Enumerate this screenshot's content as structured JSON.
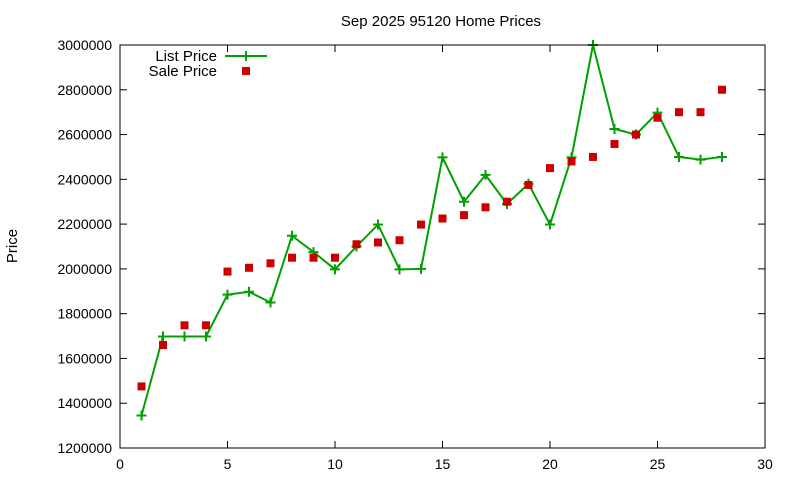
{
  "chart_data": {
    "type": "line",
    "title": "Sep 2025 95120 Home Prices",
    "xlabel": "",
    "ylabel": "Price",
    "xlim": [
      0,
      30
    ],
    "ylim": [
      1200000,
      3000000
    ],
    "x_ticks": [
      0,
      5,
      10,
      15,
      20,
      25,
      30
    ],
    "y_ticks": [
      1200000,
      1400000,
      1600000,
      1800000,
      2000000,
      2200000,
      2400000,
      2600000,
      2800000,
      3000000
    ],
    "grid": false,
    "legend_position": "top-left",
    "series": [
      {
        "name": "List Price",
        "style": "line-points",
        "color": "#00a000",
        "x": [
          1,
          2,
          3,
          4,
          5,
          6,
          7,
          8,
          9,
          10,
          11,
          12,
          13,
          14,
          15,
          16,
          17,
          18,
          19,
          20,
          21,
          22,
          23,
          24,
          25,
          26,
          27,
          28
        ],
        "values": [
          1345000,
          1698000,
          1698000,
          1698000,
          1885000,
          1898000,
          1850000,
          2148000,
          2075000,
          1998000,
          2100000,
          2198000,
          1998000,
          2000000,
          2498000,
          2300000,
          2420000,
          2290000,
          2380000,
          2198000,
          2498000,
          3000000,
          2625000,
          2600000,
          2698000,
          2500000,
          2488000,
          2500000
        ]
      },
      {
        "name": "Sale Price",
        "style": "points",
        "color": "#cc0000",
        "x": [
          1,
          2,
          3,
          4,
          5,
          6,
          7,
          8,
          9,
          10,
          11,
          12,
          13,
          14,
          15,
          16,
          17,
          18,
          19,
          20,
          21,
          22,
          23,
          24,
          25,
          26,
          27,
          28
        ],
        "values": [
          1475000,
          1660000,
          1748000,
          1748000,
          1988000,
          2005000,
          2025000,
          2050000,
          2050000,
          2050000,
          2110000,
          2118000,
          2128000,
          2198000,
          2225000,
          2240000,
          2275000,
          2300000,
          2375000,
          2450000,
          2480000,
          2500000,
          2558000,
          2600000,
          2675000,
          2700000,
          2700000,
          2800000
        ]
      }
    ]
  }
}
